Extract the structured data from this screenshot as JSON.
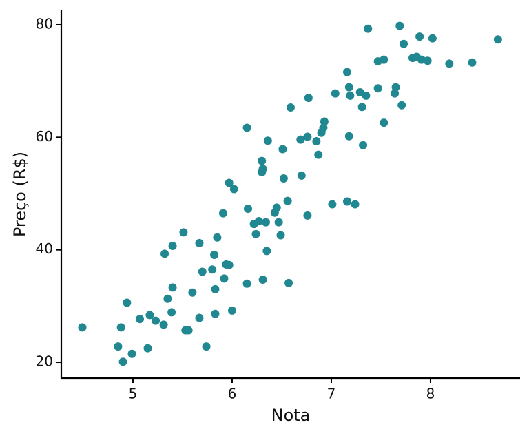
{
  "chart_data": {
    "type": "scatter",
    "x_label": "Nota",
    "y_label": "Preço (R$)",
    "xlim": [
      4.278,
      8.903
    ],
    "ylim": [
      17.19,
      82.69
    ],
    "xticks": [
      5,
      6,
      7,
      8
    ],
    "yticks": [
      20,
      40,
      60,
      80
    ],
    "grid": false,
    "series": [
      {
        "color": "#218891",
        "x": [
          4.49,
          4.88,
          4.85,
          4.9,
          4.99,
          4.94,
          5.07,
          5.15,
          5.17,
          5.23,
          5.31,
          5.32,
          5.35,
          5.39,
          5.4,
          5.4,
          5.51,
          5.53,
          5.56,
          5.6,
          5.67,
          5.67,
          5.7,
          5.74,
          5.8,
          5.82,
          5.83,
          5.83,
          5.85,
          5.91,
          5.92,
          5.94,
          5.97,
          5.97,
          6.0,
          6.02,
          6.15,
          6.16,
          6.15,
          6.22,
          6.24,
          6.27,
          6.3,
          6.31,
          6.3,
          6.31,
          6.34,
          6.35,
          6.36,
          6.43,
          6.45,
          6.47,
          6.49,
          6.51,
          6.52,
          6.56,
          6.57,
          6.59,
          6.69,
          6.7,
          6.76,
          6.76,
          6.77,
          6.85,
          6.87,
          6.9,
          6.92,
          6.93,
          7.01,
          7.04,
          7.16,
          7.16,
          7.18,
          7.18,
          7.19,
          7.24,
          7.29,
          7.31,
          7.32,
          7.35,
          7.37,
          7.47,
          7.47,
          7.53,
          7.53,
          7.64,
          7.65,
          7.69,
          7.71,
          7.73,
          7.82,
          7.86,
          7.89,
          7.91,
          7.97,
          8.02,
          8.19,
          8.42,
          8.68
        ],
        "values": [
          26.2,
          26.2,
          22.8,
          20.1,
          21.5,
          30.6,
          27.7,
          22.5,
          28.4,
          27.4,
          26.7,
          39.3,
          31.3,
          28.9,
          33.3,
          40.7,
          43.1,
          25.7,
          25.7,
          32.4,
          41.2,
          27.9,
          36.1,
          22.8,
          36.5,
          39.1,
          28.6,
          33.0,
          42.2,
          46.5,
          34.9,
          37.4,
          37.3,
          51.9,
          29.2,
          50.8,
          61.7,
          47.3,
          34.0,
          44.6,
          42.8,
          45.1,
          55.8,
          54.4,
          53.8,
          34.7,
          44.9,
          39.8,
          59.4,
          46.6,
          47.5,
          44.9,
          42.6,
          57.9,
          52.7,
          48.7,
          34.1,
          65.3,
          59.6,
          53.2,
          60.1,
          46.1,
          67.0,
          59.3,
          56.9,
          60.8,
          61.7,
          62.8,
          48.1,
          67.8,
          71.6,
          48.6,
          68.9,
          60.2,
          67.4,
          48.1,
          68.0,
          65.4,
          58.6,
          67.4,
          79.3,
          68.7,
          73.5,
          73.8,
          62.6,
          67.8,
          68.9,
          79.8,
          65.7,
          76.6,
          74.1,
          74.3,
          77.9,
          73.8,
          73.6,
          77.6,
          73.1,
          73.3,
          77.4
        ]
      }
    ]
  }
}
